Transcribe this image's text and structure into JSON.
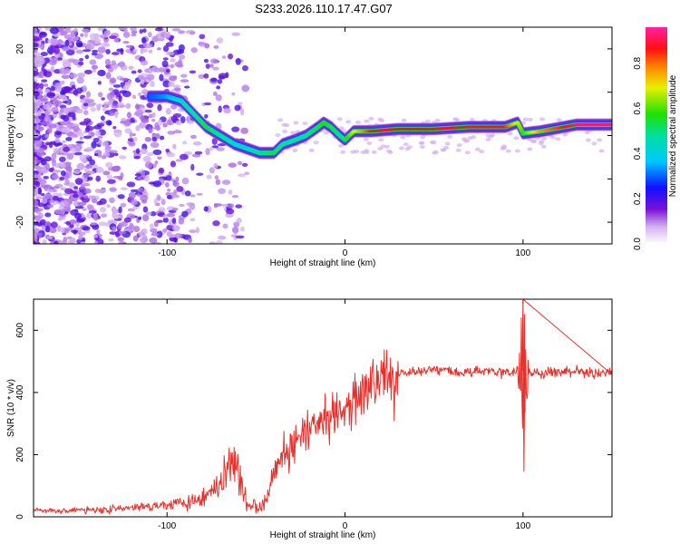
{
  "title": "S233.2026.110.17.47.G07",
  "chart_data": [
    {
      "type": "heatmap",
      "name": "spectrogram",
      "xlabel": "Height of straight line (km)",
      "ylabel": "Frequency (Hz)",
      "xlim": [
        -175,
        150
      ],
      "ylim": [
        -25,
        25
      ],
      "xticks": [
        -100,
        0,
        100
      ],
      "xtick_labels": [
        "-100",
        "0",
        "100"
      ],
      "yticks": [
        -20,
        -10,
        0,
        10,
        20
      ],
      "ytick_labels": [
        "-20",
        "-10",
        "0",
        "10",
        "20"
      ],
      "grid": false,
      "colorbar": {
        "label": "Normalized spectral amplitude",
        "range": [
          0,
          0.96
        ],
        "ticks": [
          0.0,
          0.2,
          0.4,
          0.6,
          0.8
        ],
        "tick_labels": [
          "0.0",
          "0.2",
          "0.4",
          "0.6",
          "0.8"
        ],
        "colormap": "rainbow (white-violet-blue-cyan-green-yellow-red-magenta)"
      },
      "ridge": {
        "height_km": [
          -110,
          -100,
          -92,
          -85,
          -78,
          -70,
          -62,
          -55,
          -48,
          -40,
          -35,
          -28,
          -22,
          -15,
          -12,
          -8,
          -3,
          0,
          5,
          15,
          30,
          50,
          70,
          90,
          97,
          100,
          110,
          130,
          150
        ],
        "frequency_hz": [
          9,
          9,
          8,
          5,
          2,
          0,
          -2,
          -3,
          -4,
          -4,
          -2,
          -1,
          0,
          2,
          3,
          2,
          0,
          -1,
          1,
          1,
          1.5,
          1.5,
          2,
          2,
          3,
          0.5,
          1,
          2.5,
          2.5
        ],
        "amplitude": [
          0.3,
          0.35,
          0.45,
          0.5,
          0.55,
          0.5,
          0.45,
          0.45,
          0.5,
          0.55,
          0.5,
          0.5,
          0.5,
          0.55,
          0.6,
          0.55,
          0.5,
          0.55,
          0.7,
          0.9,
          0.9,
          0.9,
          0.9,
          0.9,
          0.7,
          0.6,
          0.8,
          0.95,
          0.95
        ]
      }
    },
    {
      "type": "line",
      "name": "snr",
      "xlabel": "Height of straight line (km)",
      "ylabel": "SNR (10 * v/v)",
      "xlim": [
        -175,
        150
      ],
      "ylim": [
        0,
        700
      ],
      "xticks": [
        -100,
        0,
        100
      ],
      "xtick_labels": [
        "-100",
        "0",
        "100"
      ],
      "yticks": [
        0,
        200,
        400,
        600
      ],
      "ytick_labels": [
        "0",
        "200",
        "400",
        "600"
      ],
      "color": "#e8302a",
      "series": [
        {
          "name": "SNR",
          "x": [
            -175,
            -160,
            -150,
            -140,
            -130,
            -120,
            -110,
            -100,
            -90,
            -80,
            -75,
            -70,
            -66,
            -63,
            -60,
            -57,
            -54,
            -50,
            -46,
            -43,
            -40,
            -38,
            -35,
            -30,
            -25,
            -20,
            -15,
            -10,
            -5,
            0,
            5,
            10,
            15,
            20,
            25,
            30,
            35,
            40,
            50,
            60,
            70,
            80,
            90,
            95,
            98,
            100,
            102,
            105,
            110,
            120,
            130,
            140,
            150
          ],
          "y": [
            20,
            20,
            22,
            22,
            25,
            28,
            35,
            40,
            50,
            60,
            80,
            110,
            160,
            190,
            150,
            80,
            40,
            30,
            40,
            90,
            160,
            180,
            200,
            230,
            250,
            270,
            290,
            310,
            330,
            340,
            370,
            400,
            420,
            440,
            450,
            460,
            465,
            470,
            475,
            470,
            465,
            470,
            465,
            460,
            480,
            470,
            460,
            465,
            460,
            465,
            470,
            460,
            465
          ]
        }
      ],
      "spike": {
        "x": 100,
        "max": 700,
        "min": 145
      }
    }
  ],
  "colors": {
    "line": "#e8302a",
    "axis": "#000000",
    "background": "#ffffff"
  }
}
